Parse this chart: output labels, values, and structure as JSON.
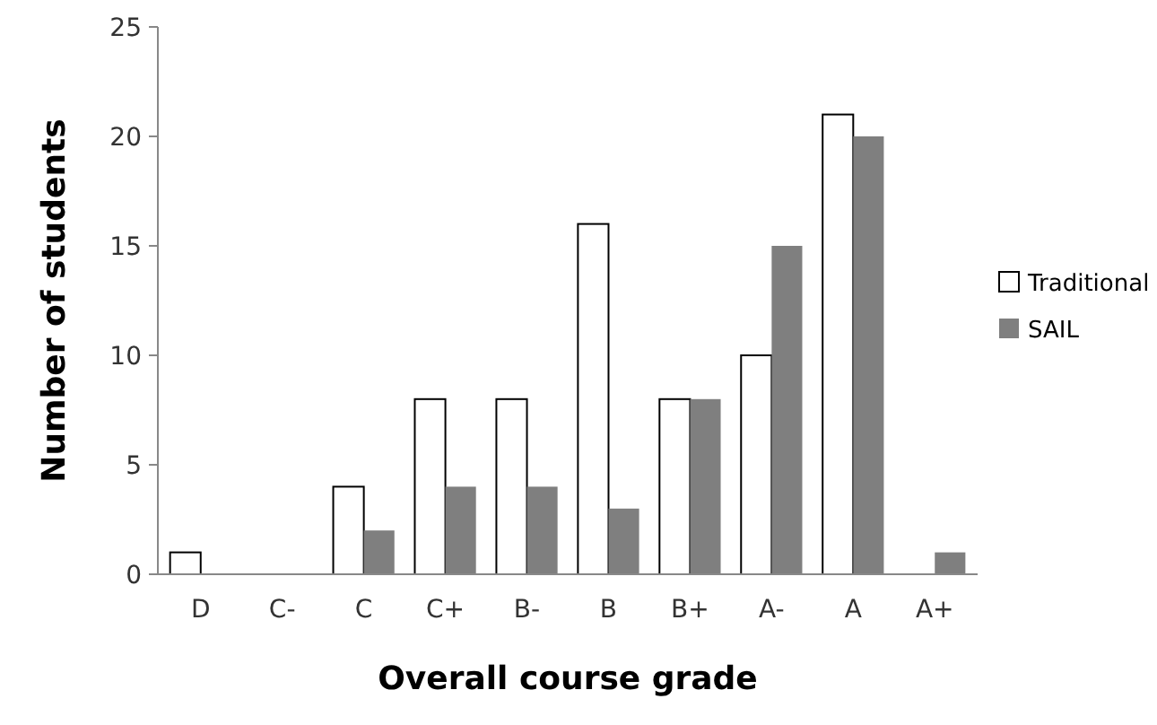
{
  "chart_data": {
    "type": "bar",
    "xlabel": "Overall course grade",
    "ylabel": "Number of students",
    "categories": [
      "D",
      "C-",
      "C",
      "C+",
      "B-",
      "B",
      "B+",
      "A-",
      "A",
      "A+"
    ],
    "series": [
      {
        "name": "Traditional",
        "color": "#ffffff",
        "values": [
          1,
          0,
          4,
          8,
          8,
          16,
          8,
          10,
          21,
          0
        ]
      },
      {
        "name": "SAIL",
        "color": "#7f7f7f",
        "values": [
          0,
          0,
          2,
          4,
          4,
          3,
          8,
          15,
          20,
          1
        ]
      }
    ],
    "ylim": [
      0,
      25
    ],
    "yticks": [
      0,
      5,
      10,
      15,
      20,
      25
    ],
    "grid": false,
    "legend": "right"
  }
}
